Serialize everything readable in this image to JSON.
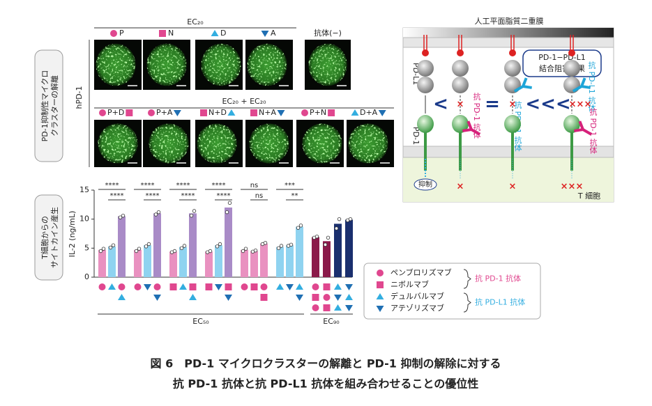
{
  "panel_a": {
    "side_label": [
      "PD-1抑制性マイクロ",
      "クラスターの解離"
    ],
    "hpd1": "hPD-1",
    "row1_header": "EC₂₀",
    "row1_labels": [
      "P",
      "N",
      "D",
      "A"
    ],
    "control_label": "抗体(−)",
    "row2_header": "EC₂₀ + EC₂₀",
    "row2_labels": [
      "P+D",
      "P+A",
      "N+D",
      "N+A",
      "P+N",
      "D+A"
    ]
  },
  "chart_data": {
    "type": "bar",
    "side_label": [
      "T細胞からの",
      "サイトカイン産生"
    ],
    "y_label": "IL-2 (ng/mL)",
    "ylim": [
      0,
      15
    ],
    "yticks": [
      0,
      5,
      10,
      15
    ],
    "values": [
      4.7,
      5.3,
      10.5,
      4.7,
      5.5,
      11.0,
      4.4,
      5.2,
      11.0,
      4.4,
      5.5,
      12.0,
      4.7,
      4.5,
      5.8,
      5.2,
      5.5,
      8.7,
      6.9,
      6.2,
      9.2,
      9.9
    ],
    "points": [
      [
        4.5,
        4.9
      ],
      [
        5.1,
        5.5
      ],
      [
        10.3,
        10.6
      ],
      [
        4.5,
        4.9
      ],
      [
        5.3,
        5.7
      ],
      [
        10.8,
        11.2
      ],
      [
        4.3,
        4.5
      ],
      [
        5.0,
        5.4
      ],
      [
        10.6,
        11.4
      ],
      [
        4.3,
        4.5
      ],
      [
        5.3,
        5.7
      ],
      [
        11.2,
        12.8
      ],
      [
        4.5,
        4.9
      ],
      [
        4.4,
        4.6
      ],
      [
        5.7,
        5.9
      ],
      [
        5.0,
        5.4
      ],
      [
        5.4,
        5.6
      ],
      [
        8.5,
        8.9
      ],
      [
        6.8,
        7.0
      ],
      [
        5.6,
        6.8
      ],
      [
        8.4,
        10.0
      ],
      [
        9.8,
        10.0
      ]
    ],
    "colors": [
      "#e991c0",
      "#8fd3f0",
      "#a98bc7",
      "#e991c0",
      "#8fd3f0",
      "#a98bc7",
      "#e991c0",
      "#8fd3f0",
      "#a98bc7",
      "#e991c0",
      "#8fd3f0",
      "#a98bc7",
      "#e991c0",
      "#e991c0",
      "#e991c0",
      "#8fd3f0",
      "#8fd3f0",
      "#8fd3f0",
      "#8b1a4a",
      "#8b1a4a",
      "#1a2f6e",
      "#1a2f6e"
    ],
    "groups": [
      "EC₅₀",
      "EC₉₀"
    ],
    "annotations": [
      "****",
      "****",
      "****",
      "****",
      "****",
      "****",
      "****",
      "****",
      "ns",
      "ns",
      "***",
      "**"
    ],
    "legend": {
      "drugs": [
        "ペンブロリズマブ",
        "ニボルマブ",
        "デュルバルマブ",
        "アテゾリズマブ"
      ],
      "classes": [
        "抗 PD-1 抗体",
        "抗 PD-L1 抗体"
      ]
    }
  },
  "diagram": {
    "title": "人工平面脂質二重膜",
    "pdl1": "PD-L1",
    "pd1": "PD-1",
    "box": [
      "PD-1−PD-L1",
      "結合阻害効果"
    ],
    "anti_pd1": "抗 PD-1 抗体",
    "anti_pdl1": "抗 PD-L1 抗体",
    "inhibit": "抑制",
    "tcell": "T 細胞"
  },
  "caption": [
    "図 6　PD-1 マイクロクラスターの解離と PD-1 抑制の解除に対する",
    "抗 PD-1 抗体と抗 PD-L1 抗体を組み合わせることの優位性"
  ]
}
